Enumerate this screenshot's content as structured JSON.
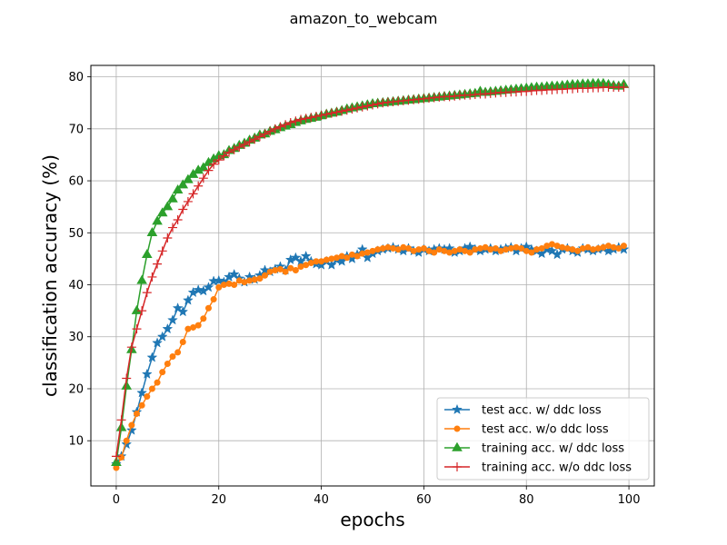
{
  "chart_data": {
    "type": "line",
    "title": "amazon_to_webcam",
    "xlabel": "epochs",
    "ylabel": "classification accuracy (%)",
    "xlim": [
      -4.95,
      104.95
    ],
    "ylim": [
      1.3,
      82.2
    ],
    "xticks": [
      0,
      20,
      40,
      60,
      80,
      100
    ],
    "yticks": [
      10,
      20,
      30,
      40,
      50,
      60,
      70,
      80
    ],
    "grid": true,
    "legend_position": "lower-right",
    "x_start": 0,
    "x_step": 1,
    "series": [
      {
        "name": "test acc. w/ ddc loss",
        "color": "#1f77b4",
        "marker": "star",
        "values": [
          5.5,
          7.0,
          9.3,
          12.0,
          15.5,
          19.2,
          22.8,
          26.0,
          28.8,
          30.0,
          31.5,
          33.2,
          35.5,
          34.8,
          37.0,
          38.5,
          39.0,
          38.8,
          39.5,
          40.7,
          40.8,
          40.5,
          41.5,
          42.0,
          41.2,
          40.5,
          41.5,
          41.0,
          41.8,
          42.8,
          42.5,
          43.0,
          43.5,
          42.8,
          44.8,
          45.2,
          44.5,
          45.5,
          44.5,
          44.0,
          43.8,
          44.5,
          43.8,
          44.8,
          44.5,
          45.5,
          45.0,
          45.8,
          46.8,
          45.2,
          46.0,
          46.5,
          46.8,
          47.0,
          47.2,
          46.8,
          46.5,
          47.0,
          46.5,
          46.2,
          46.8,
          46.5,
          46.8,
          47.0,
          46.8,
          47.0,
          46.2,
          46.5,
          47.0,
          47.3,
          46.8,
          46.5,
          46.8,
          47.0,
          46.5,
          46.8,
          47.0,
          47.2,
          46.5,
          47.0,
          47.3,
          46.8,
          46.5,
          46.0,
          46.8,
          46.5,
          45.8,
          46.8,
          47.0,
          46.5,
          46.2,
          47.0,
          46.8,
          46.5,
          46.8,
          47.0,
          46.5,
          46.8,
          47.2,
          46.8
        ]
      },
      {
        "name": "test acc. w/o ddc loss",
        "color": "#ff7f0e",
        "marker": "circle",
        "values": [
          4.8,
          6.8,
          10.0,
          13.0,
          15.2,
          16.8,
          18.5,
          20.0,
          21.2,
          23.2,
          24.8,
          26.2,
          27.0,
          29.0,
          31.5,
          31.8,
          32.2,
          33.5,
          35.5,
          37.2,
          39.5,
          40.0,
          40.2,
          40.0,
          40.8,
          40.5,
          40.8,
          41.0,
          41.2,
          41.8,
          42.5,
          42.8,
          43.0,
          42.5,
          43.2,
          42.8,
          43.5,
          43.8,
          44.2,
          44.5,
          44.5,
          44.8,
          45.0,
          45.2,
          45.5,
          45.2,
          45.8,
          45.5,
          46.0,
          46.2,
          46.5,
          46.8,
          47.0,
          47.2,
          47.0,
          46.8,
          47.2,
          47.0,
          46.5,
          46.8,
          47.0,
          46.5,
          46.2,
          46.8,
          46.5,
          46.2,
          46.5,
          46.8,
          46.5,
          46.2,
          46.8,
          47.0,
          47.2,
          46.8,
          47.0,
          46.5,
          46.8,
          47.0,
          47.2,
          47.0,
          46.5,
          46.2,
          46.8,
          47.0,
          47.5,
          47.8,
          47.5,
          47.2,
          47.0,
          46.8,
          46.5,
          47.0,
          47.2,
          46.8,
          47.0,
          47.2,
          47.5,
          47.2,
          47.0,
          47.5
        ]
      },
      {
        "name": "training acc. w/ ddc loss",
        "color": "#2ca02c",
        "marker": "triangle",
        "values": [
          5.8,
          12.5,
          20.5,
          27.5,
          35.0,
          40.8,
          45.8,
          50.0,
          52.2,
          53.8,
          55.0,
          56.5,
          58.2,
          59.2,
          60.2,
          61.2,
          62.0,
          62.5,
          63.5,
          64.2,
          64.8,
          65.0,
          65.8,
          66.2,
          66.8,
          67.2,
          67.8,
          68.2,
          68.8,
          69.0,
          69.5,
          69.8,
          70.2,
          70.5,
          70.8,
          71.2,
          71.5,
          71.8,
          72.0,
          72.2,
          72.5,
          72.8,
          73.0,
          73.2,
          73.5,
          73.8,
          74.0,
          74.2,
          74.4,
          74.6,
          74.8,
          74.9,
          75.0,
          75.1,
          75.2,
          75.3,
          75.4,
          75.5,
          75.6,
          75.7,
          75.8,
          75.9,
          76.0,
          76.1,
          76.2,
          76.3,
          76.4,
          76.5,
          76.6,
          76.7,
          76.8,
          77.2,
          77.0,
          77.1,
          77.2,
          77.3,
          77.4,
          77.5,
          77.6,
          77.7,
          77.8,
          77.9,
          78.0,
          78.0,
          78.1,
          78.2,
          78.2,
          78.3,
          78.4,
          78.5,
          78.5,
          78.6,
          78.6,
          78.7,
          78.7,
          78.7,
          78.5,
          78.3,
          78.2,
          78.5
        ]
      },
      {
        "name": "training acc. w/o ddc loss",
        "color": "#d62728",
        "marker": "plus",
        "values": [
          7.0,
          14.0,
          22.0,
          28.0,
          31.5,
          35.0,
          38.5,
          41.5,
          44.0,
          46.5,
          49.0,
          51.0,
          52.5,
          54.5,
          56.0,
          57.5,
          59.0,
          60.5,
          62.0,
          63.2,
          64.0,
          64.8,
          65.5,
          66.0,
          66.5,
          67.0,
          67.5,
          68.0,
          68.5,
          69.0,
          69.5,
          70.0,
          70.4,
          70.8,
          71.2,
          71.5,
          71.8,
          72.0,
          72.2,
          72.4,
          72.6,
          72.8,
          73.0,
          73.2,
          73.4,
          73.6,
          73.8,
          74.0,
          74.2,
          74.4,
          74.6,
          74.8,
          75.0,
          75.1,
          75.2,
          75.3,
          75.4,
          75.5,
          75.6,
          75.7,
          75.8,
          75.9,
          76.0,
          76.1,
          76.2,
          76.2,
          76.3,
          76.4,
          76.5,
          76.5,
          76.6,
          76.7,
          76.7,
          76.8,
          76.9,
          77.0,
          77.0,
          77.1,
          77.1,
          77.2,
          77.2,
          77.3,
          77.4,
          77.4,
          77.5,
          77.5,
          77.6,
          77.6,
          77.7,
          77.7,
          77.8,
          77.8,
          77.8,
          77.9,
          77.9,
          78.0,
          78.0,
          78.0,
          78.0,
          78.0
        ]
      }
    ]
  }
}
